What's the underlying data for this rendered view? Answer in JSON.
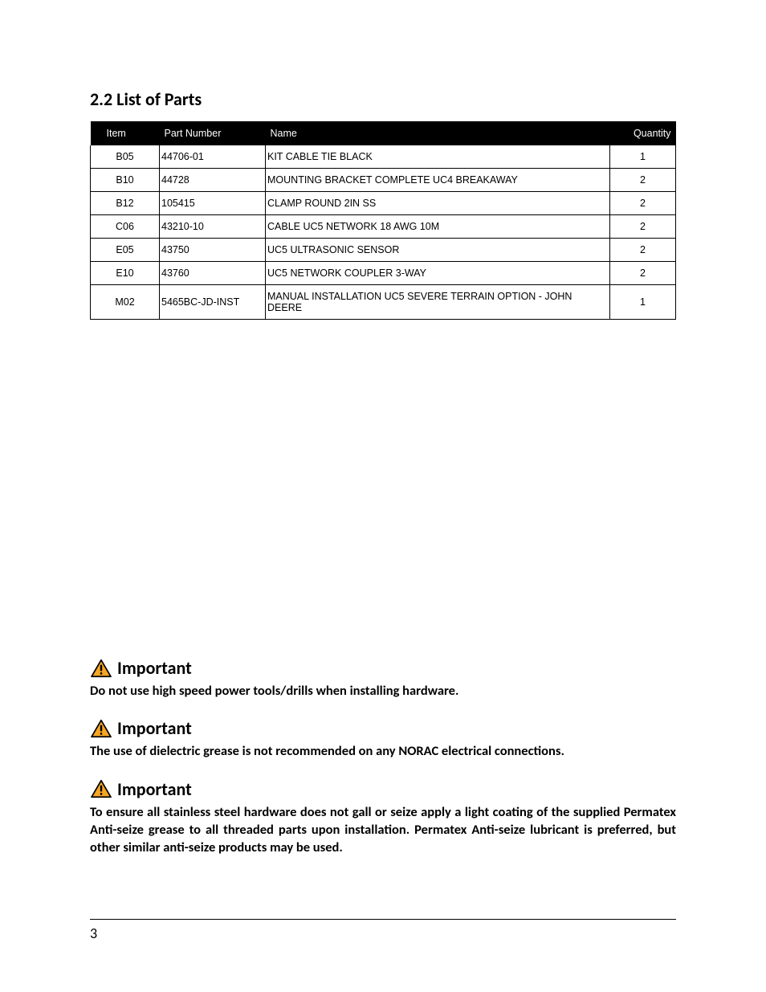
{
  "section": {
    "title": "2.2  List of Parts"
  },
  "table": {
    "headers": {
      "item": "Item",
      "pn": "Part Number",
      "name": "Name",
      "qty": "Quantity"
    },
    "rows": [
      {
        "item": "B05",
        "pn": "44706-01",
        "name": "KIT CABLE TIE BLACK",
        "qty": "1"
      },
      {
        "item": "B10",
        "pn": "44728",
        "name": "MOUNTING BRACKET COMPLETE UC4 BREAKAWAY",
        "qty": "2"
      },
      {
        "item": "B12",
        "pn": "105415",
        "name": "CLAMP ROUND 2IN SS",
        "qty": "2"
      },
      {
        "item": "C06",
        "pn": "43210-10",
        "name": "CABLE UC5 NETWORK 18 AWG 10M",
        "qty": "2"
      },
      {
        "item": "E05",
        "pn": "43750",
        "name": "UC5 ULTRASONIC SENSOR",
        "qty": "2"
      },
      {
        "item": "E10",
        "pn": "43760",
        "name": "UC5 NETWORK COUPLER 3-WAY",
        "qty": "2"
      },
      {
        "item": "M02",
        "pn": "5465BC-JD-INST",
        "name": "MANUAL INSTALLATION UC5 SEVERE TERRAIN OPTION - JOHN DEERE",
        "qty": "1"
      }
    ]
  },
  "notes": {
    "label": "Important",
    "icon_fill": "#f5a623",
    "icon_stroke": "#000000",
    "items": [
      {
        "text": "Do not use high speed power tools/drills when installing hardware.",
        "justify": false
      },
      {
        "text": "The use of dielectric grease is not recommended on any NORAC electrical connections.",
        "justify": true
      },
      {
        "text": "To ensure all stainless steel hardware does not gall or seize apply a light coating of the supplied Permatex Anti-seize grease to all threaded parts upon installation. Permatex Anti-seize lubricant is preferred, but other similar anti-seize products may be used.",
        "justify": true
      }
    ]
  },
  "footer": {
    "page": "3"
  }
}
